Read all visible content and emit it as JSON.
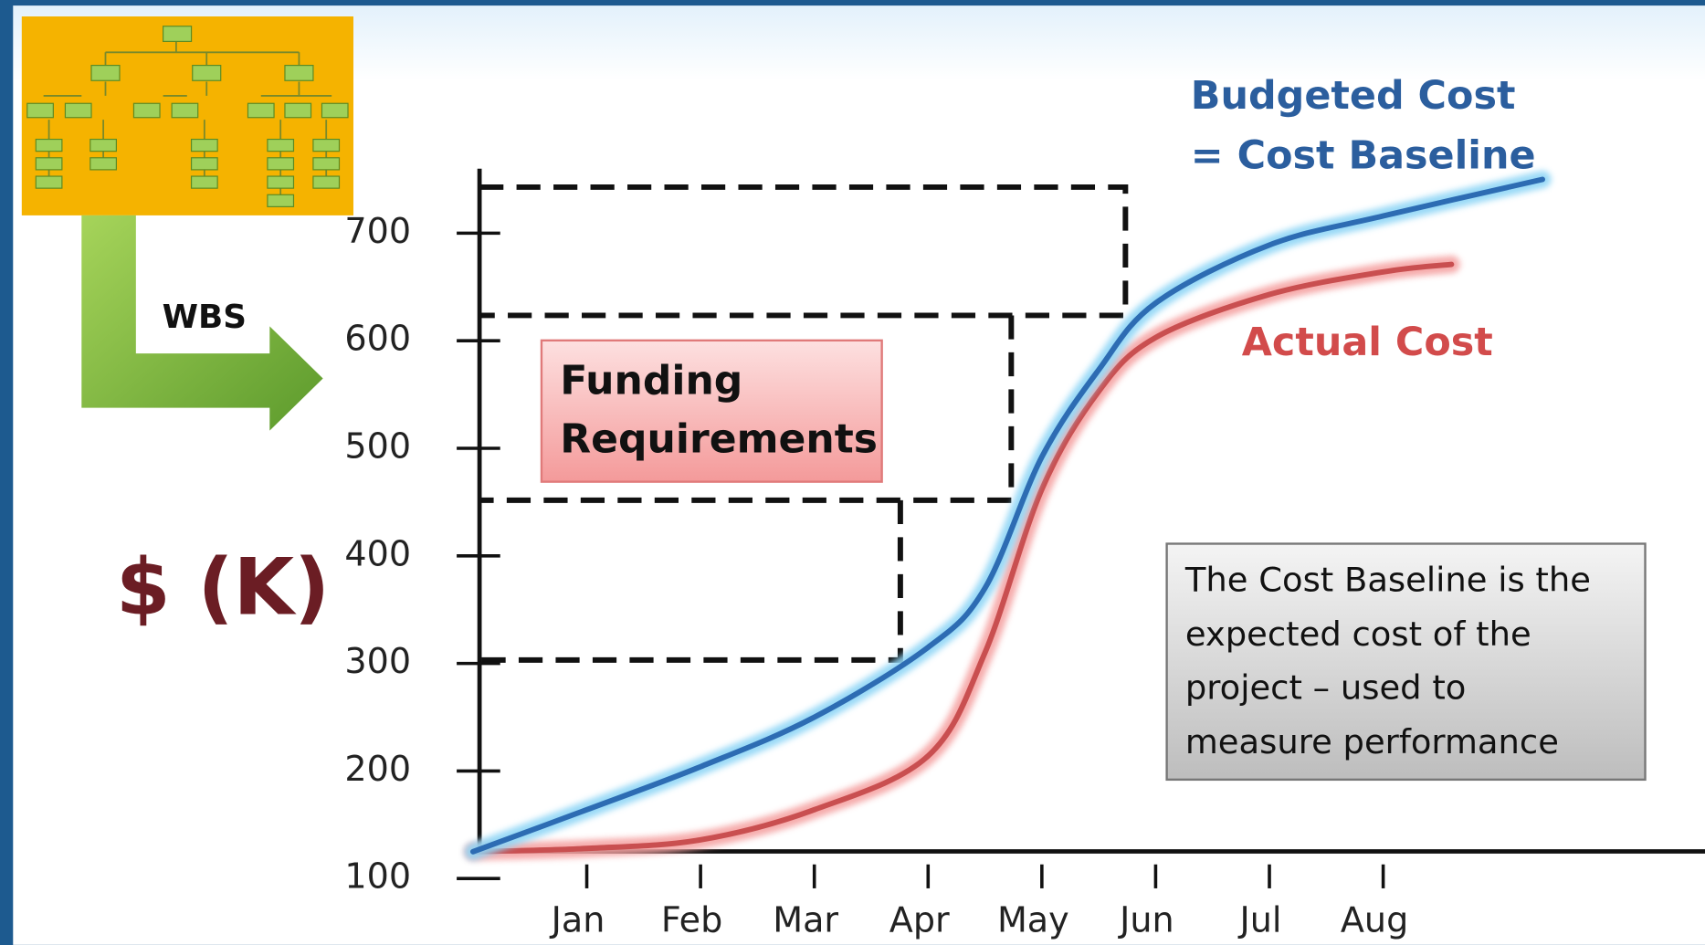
{
  "chart_data": {
    "type": "line",
    "y_label": "$ (K)",
    "wbs_label": "WBS",
    "funding_box": [
      "Funding",
      "Requirements"
    ],
    "note": [
      "The Cost Baseline is the",
      "expected cost of the",
      "project – used to",
      "measure performance"
    ],
    "xlim": [
      0,
      10.8
    ],
    "xticks": [
      {
        "value": 1,
        "label": "Jan"
      },
      {
        "value": 2,
        "label": "Feb"
      },
      {
        "value": 3,
        "label": "Mar"
      },
      {
        "value": 4,
        "label": "Apr"
      },
      {
        "value": 5,
        "label": "May"
      },
      {
        "value": 6,
        "label": "Jun"
      },
      {
        "value": 7,
        "label": "Jul"
      },
      {
        "value": 8,
        "label": "Aug"
      }
    ],
    "ylim": [
      100,
      760
    ],
    "yticks": [
      100,
      200,
      300,
      400,
      500,
      600,
      700
    ],
    "series": [
      {
        "name": "Budgeted Cost",
        "name_line2": "= Cost Baseline",
        "color": "#2d6cb3",
        "glow": "#8fd6f6",
        "x": [
          0,
          1,
          2,
          3,
          4,
          4.5,
          5,
          5.5,
          6,
          7,
          8,
          9.4
        ],
        "values": [
          125,
          164,
          204,
          250,
          315,
          370,
          492,
          573,
          635,
          689,
          716,
          750
        ]
      },
      {
        "name": "Actual Cost",
        "color": "#c94f50",
        "glow": "#f5a3a3",
        "x": [
          0,
          1,
          2,
          3,
          4,
          4.5,
          5,
          5.5,
          6,
          7,
          8,
          8.6
        ],
        "values": [
          125,
          128,
          136,
          164,
          214,
          310,
          462,
          553,
          603,
          643,
          664,
          671
        ]
      }
    ]
  }
}
